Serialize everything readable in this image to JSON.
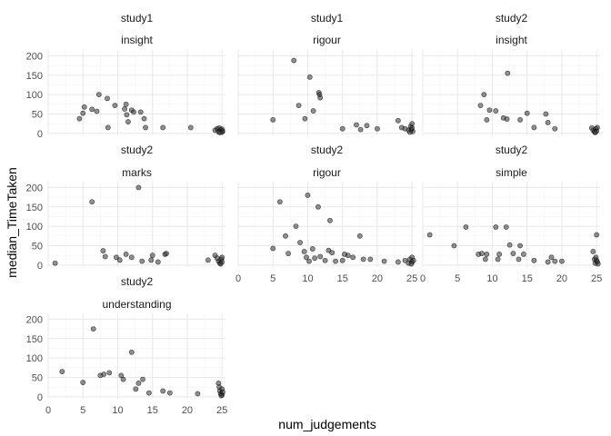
{
  "chart_data": {
    "type": "scatter",
    "xlabel": "num_judgements",
    "ylabel": "median_TimeTaken",
    "xlim": [
      0,
      25.5
    ],
    "ylim": [
      -5,
      215
    ],
    "x_ticks": [
      0,
      5,
      10,
      15,
      20,
      25
    ],
    "y_ticks": [
      0,
      50,
      100,
      150,
      200
    ],
    "grid": true,
    "point_color": "#333333",
    "point_opacity": 0.55,
    "panels": [
      {
        "strip1": "study1",
        "strip2": "insight",
        "points": [
          [
            4.5,
            38
          ],
          [
            5,
            52
          ],
          [
            5.2,
            68
          ],
          [
            6.3,
            62
          ],
          [
            7,
            57
          ],
          [
            7.3,
            100
          ],
          [
            8.5,
            90
          ],
          [
            8.6,
            15
          ],
          [
            9.6,
            72
          ],
          [
            11,
            63
          ],
          [
            11.2,
            75
          ],
          [
            11.3,
            48
          ],
          [
            11.5,
            30
          ],
          [
            12,
            60
          ],
          [
            12.3,
            55
          ],
          [
            13.3,
            55
          ],
          [
            13.8,
            38
          ],
          [
            14,
            15
          ],
          [
            16.5,
            15
          ],
          [
            20.5,
            15
          ],
          [
            24,
            8
          ],
          [
            24.3,
            12
          ],
          [
            24.5,
            4
          ],
          [
            24.6,
            14
          ],
          [
            24.8,
            9
          ],
          [
            25,
            3
          ],
          [
            25,
            11
          ],
          [
            25.1,
            6
          ],
          [
            24.7,
            2
          ]
        ]
      },
      {
        "strip1": "study1",
        "strip2": "rigour",
        "points": [
          [
            5,
            35
          ],
          [
            8,
            188
          ],
          [
            8.7,
            72
          ],
          [
            9.6,
            38
          ],
          [
            10.3,
            145
          ],
          [
            10.8,
            58
          ],
          [
            11.6,
            105
          ],
          [
            11.8,
            92
          ],
          [
            11.7,
            100
          ],
          [
            15,
            12
          ],
          [
            17,
            22
          ],
          [
            17.6,
            10
          ],
          [
            18.5,
            20
          ],
          [
            20,
            12
          ],
          [
            23,
            33
          ],
          [
            23.5,
            15
          ],
          [
            24,
            12
          ],
          [
            24.5,
            8
          ],
          [
            24.8,
            18
          ],
          [
            25,
            25
          ],
          [
            25.1,
            5
          ],
          [
            24.9,
            10
          ],
          [
            25,
            14
          ],
          [
            24.7,
            3
          ]
        ]
      },
      {
        "strip1": "study2",
        "strip2": "insight",
        "points": [
          [
            8.3,
            72
          ],
          [
            8.8,
            100
          ],
          [
            9.2,
            35
          ],
          [
            9.6,
            60
          ],
          [
            10.5,
            58
          ],
          [
            11.6,
            40
          ],
          [
            12.2,
            155
          ],
          [
            12.1,
            37
          ],
          [
            14,
            35
          ],
          [
            15,
            52
          ],
          [
            16,
            15
          ],
          [
            17.7,
            50
          ],
          [
            18,
            28
          ],
          [
            19,
            12
          ],
          [
            24.3,
            14
          ],
          [
            24.5,
            8
          ],
          [
            24.7,
            4
          ],
          [
            24.9,
            12
          ],
          [
            25,
            6
          ],
          [
            25.1,
            15
          ],
          [
            24.8,
            2
          ]
        ]
      },
      {
        "strip1": "study2",
        "strip2": "marks",
        "points": [
          [
            1,
            5
          ],
          [
            6.3,
            163
          ],
          [
            7.9,
            37
          ],
          [
            8.2,
            22
          ],
          [
            9.8,
            20
          ],
          [
            10.3,
            13
          ],
          [
            11.2,
            28
          ],
          [
            12,
            20
          ],
          [
            13,
            200
          ],
          [
            13.5,
            10
          ],
          [
            14.8,
            13
          ],
          [
            15,
            25
          ],
          [
            15.8,
            8
          ],
          [
            16.8,
            28
          ],
          [
            17,
            30
          ],
          [
            23,
            13
          ],
          [
            24,
            25
          ],
          [
            24.3,
            18
          ],
          [
            24.5,
            10
          ],
          [
            24.7,
            5
          ],
          [
            24.9,
            15
          ],
          [
            25,
            8
          ],
          [
            25,
            20
          ],
          [
            24.8,
            3
          ]
        ]
      },
      {
        "strip1": "study2",
        "strip2": "rigour",
        "points": [
          [
            5,
            43
          ],
          [
            6,
            163
          ],
          [
            6.8,
            75
          ],
          [
            7.2,
            30
          ],
          [
            8.3,
            100
          ],
          [
            8.9,
            58
          ],
          [
            9.5,
            35
          ],
          [
            9.8,
            20
          ],
          [
            10,
            180
          ],
          [
            10.2,
            10
          ],
          [
            10.7,
            42
          ],
          [
            11,
            18
          ],
          [
            11.5,
            150
          ],
          [
            11.8,
            22
          ],
          [
            12.5,
            12
          ],
          [
            13,
            38
          ],
          [
            13.2,
            115
          ],
          [
            13.5,
            32
          ],
          [
            14,
            10
          ],
          [
            15,
            12
          ],
          [
            15.3,
            28
          ],
          [
            15.8,
            25
          ],
          [
            16.5,
            20
          ],
          [
            17.5,
            75
          ],
          [
            18,
            15
          ],
          [
            19,
            15
          ],
          [
            21,
            10
          ],
          [
            23,
            8
          ],
          [
            24,
            12
          ],
          [
            24.5,
            5
          ],
          [
            24.7,
            15
          ],
          [
            25,
            20
          ],
          [
            25,
            8
          ],
          [
            25.2,
            12
          ],
          [
            24.9,
            3
          ]
        ]
      },
      {
        "strip1": "study2",
        "strip2": "simple",
        "points": [
          [
            1,
            78
          ],
          [
            4.5,
            50
          ],
          [
            6.2,
            98
          ],
          [
            8,
            28
          ],
          [
            8.5,
            30
          ],
          [
            9,
            15
          ],
          [
            9.2,
            28
          ],
          [
            10.5,
            98
          ],
          [
            10.8,
            15
          ],
          [
            11,
            28
          ],
          [
            12,
            98
          ],
          [
            12.5,
            52
          ],
          [
            13,
            30
          ],
          [
            13.8,
            15
          ],
          [
            14,
            50
          ],
          [
            14.5,
            28
          ],
          [
            16,
            12
          ],
          [
            18,
            8
          ],
          [
            18.5,
            20
          ],
          [
            19,
            10
          ],
          [
            20,
            10
          ],
          [
            24.5,
            35
          ],
          [
            24.7,
            15
          ],
          [
            24.8,
            5
          ],
          [
            25,
            78
          ],
          [
            25,
            12
          ],
          [
            25.1,
            8
          ],
          [
            24.9,
            20
          ],
          [
            25.2,
            3
          ]
        ]
      },
      {
        "strip1": "study2",
        "strip2": "understanding",
        "points": [
          [
            2,
            65
          ],
          [
            5,
            37
          ],
          [
            6.5,
            175
          ],
          [
            7.5,
            55
          ],
          [
            8,
            58
          ],
          [
            8.8,
            62
          ],
          [
            10.5,
            55
          ],
          [
            10.8,
            45
          ],
          [
            12,
            115
          ],
          [
            12.6,
            20
          ],
          [
            13,
            35
          ],
          [
            13.6,
            45
          ],
          [
            14.5,
            10
          ],
          [
            16.5,
            15
          ],
          [
            17.5,
            10
          ],
          [
            21.5,
            8
          ],
          [
            24.5,
            35
          ],
          [
            24.6,
            25
          ],
          [
            24.7,
            15
          ],
          [
            24.8,
            8
          ],
          [
            25,
            20
          ],
          [
            25,
            5
          ],
          [
            25.1,
            12
          ],
          [
            24.9,
            3
          ]
        ]
      }
    ]
  }
}
